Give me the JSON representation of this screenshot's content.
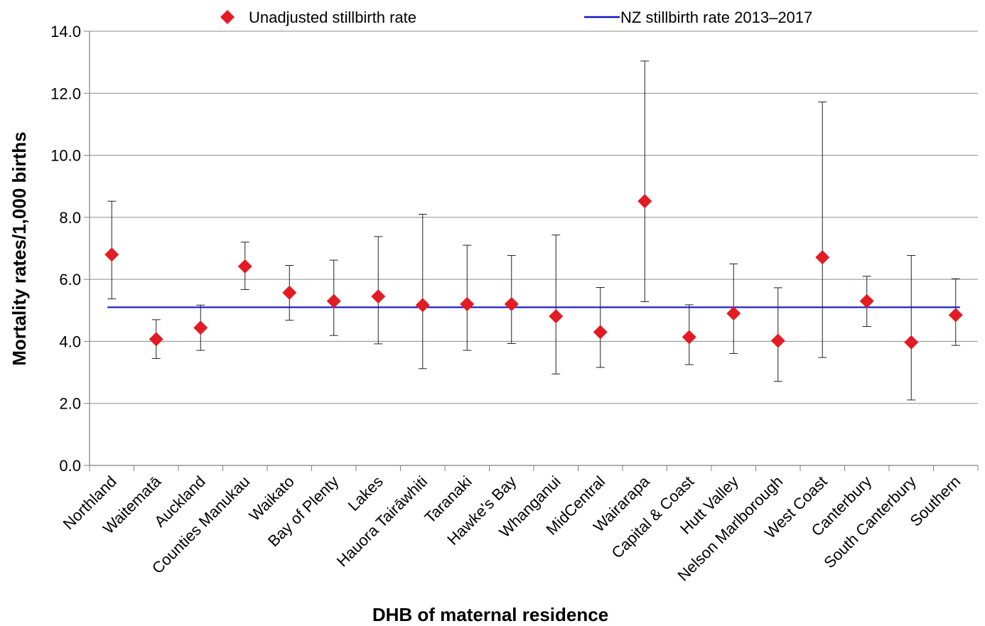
{
  "chart_data": {
    "type": "scatter",
    "title": "",
    "xlabel": "DHB of maternal residence",
    "ylabel": "Mortality rates/1,000 births",
    "ylim": [
      0,
      14
    ],
    "yticks": [
      "0.0",
      "2.0",
      "4.0",
      "6.0",
      "8.0",
      "10.0",
      "12.0",
      "14.0"
    ],
    "grid": "horizontal",
    "legend_position": "top",
    "categories": [
      "Northland",
      "Waitematā",
      "Auckland",
      "Counties Manukau",
      "Waikato",
      "Bay of Plenty",
      "Lakes",
      "Hauora Tairāwhiti",
      "Taranaki",
      "Hawke's Bay",
      "Whanganui",
      "MidCentral",
      "Wairarapa",
      "Capital & Coast",
      "Hutt Valley",
      "Nelson Marlborough",
      "West Coast",
      "Canterbury",
      "South Canterbury",
      "Southern"
    ],
    "series": [
      {
        "name": "Unadjusted stillbirth rate",
        "marker": "diamond",
        "color": "#e31b23",
        "values": [
          6.8,
          4.07,
          4.44,
          6.42,
          5.57,
          5.3,
          5.45,
          5.17,
          5.2,
          5.2,
          4.81,
          4.3,
          8.52,
          4.14,
          4.9,
          4.02,
          6.71,
          5.3,
          3.97,
          4.85
        ],
        "ci_lower": [
          5.37,
          3.45,
          3.71,
          5.67,
          4.68,
          4.19,
          3.92,
          3.12,
          3.71,
          3.93,
          2.95,
          3.16,
          5.28,
          3.25,
          3.61,
          2.71,
          3.48,
          4.48,
          2.11,
          3.87
        ],
        "ci_upper": [
          8.52,
          4.7,
          5.17,
          7.2,
          6.45,
          6.62,
          7.38,
          8.1,
          7.1,
          6.77,
          7.43,
          5.74,
          13.04,
          5.18,
          6.5,
          5.73,
          11.72,
          6.1,
          6.77,
          6.02
        ]
      },
      {
        "name": "NZ stillbirth rate 2013–2017",
        "type": "line",
        "color": "#1414c8",
        "value": 5.1
      }
    ]
  }
}
